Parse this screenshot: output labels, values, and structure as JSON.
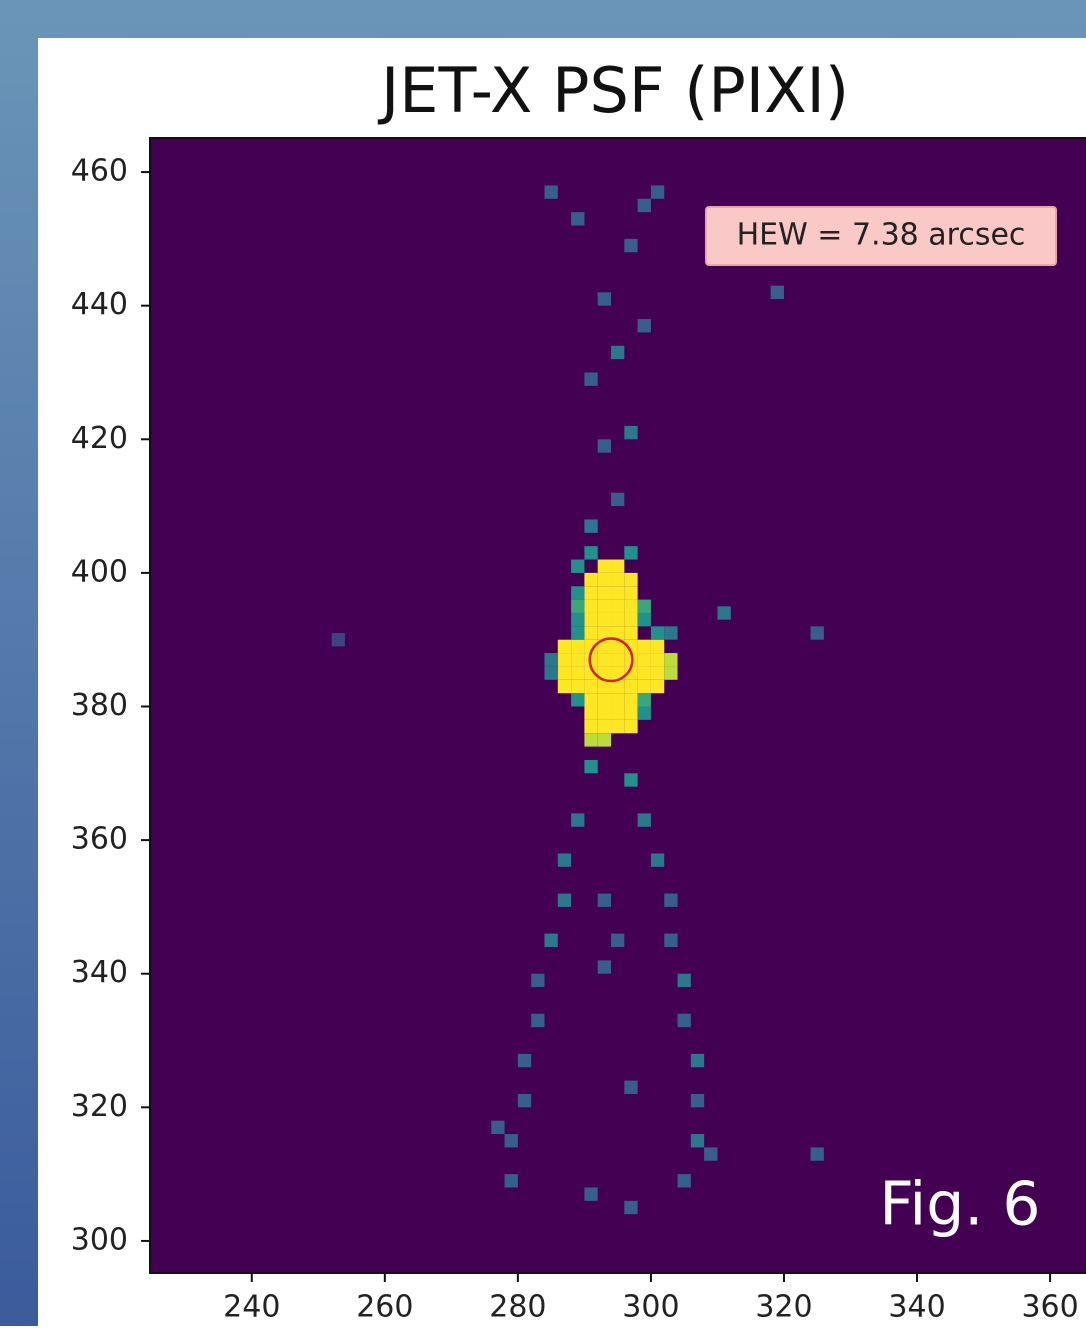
{
  "chart_data": {
    "type": "image",
    "title": "JET-X PSF (PIXI)",
    "annotation": "HEW = 7.38 arcsec",
    "figure_label": "Fig. 6",
    "xlim": [
      224.7,
      365.4
    ],
    "ylim": [
      295.2,
      465.1
    ],
    "xticks": [
      240,
      260,
      280,
      300,
      320,
      340,
      360
    ],
    "yticks": [
      300,
      320,
      340,
      360,
      380,
      400,
      420,
      440,
      460
    ],
    "colormap": "viridis",
    "clim": [
      0,
      10
    ],
    "pixel_size": 2,
    "pixels": {
      "x": [
        290,
        292,
        294,
        296,
        290,
        292,
        294,
        296,
        290,
        292,
        294,
        296,
        290,
        292,
        294,
        296,
        290,
        292,
        294,
        296,
        290,
        292,
        294,
        296,
        290,
        292,
        294,
        296,
        290,
        292,
        294,
        296,
        290,
        292,
        294,
        296,
        290,
        292,
        294,
        296,
        290,
        292,
        294,
        296,
        290,
        292,
        294,
        296,
        292,
        294,
        290,
        292,
        286,
        288,
        298,
        300,
        286,
        288,
        298,
        300,
        286,
        288,
        298,
        300,
        286,
        288,
        298,
        300,
        302,
        302,
        288,
        288,
        288,
        288,
        298,
        298,
        296,
        290,
        284,
        284,
        288,
        298,
        298,
        300,
        302,
        288,
        290,
        294,
        292,
        296,
        290,
        294,
        298,
        292,
        296,
        284,
        288,
        298,
        300,
        290,
        296,
        288,
        298,
        286,
        300,
        286,
        302,
        284,
        302,
        282,
        304,
        282,
        304,
        280,
        306,
        280,
        306,
        278,
        306,
        278,
        304,
        292,
        294,
        292,
        296,
        290,
        296,
        276,
        308,
        310,
        324,
        318,
        252,
        324
      ],
      "y": [
        376,
        376,
        376,
        376,
        378,
        378,
        378,
        378,
        380,
        380,
        380,
        380,
        382,
        382,
        382,
        382,
        384,
        384,
        384,
        384,
        386,
        386,
        386,
        386,
        388,
        388,
        388,
        388,
        390,
        390,
        390,
        390,
        392,
        392,
        392,
        392,
        394,
        394,
        394,
        394,
        396,
        396,
        396,
        396,
        398,
        398,
        398,
        398,
        400,
        400,
        374,
        374,
        382,
        382,
        382,
        382,
        384,
        384,
        384,
        384,
        386,
        386,
        386,
        386,
        388,
        388,
        388,
        388,
        384,
        386,
        390,
        392,
        394,
        396,
        392,
        394,
        402,
        402,
        386,
        384,
        380,
        378,
        380,
        390,
        390,
        400,
        406,
        410,
        418,
        420,
        428,
        432,
        436,
        440,
        448,
        456,
        452,
        454,
        456,
        370,
        368,
        362,
        362,
        356,
        356,
        350,
        350,
        344,
        344,
        338,
        338,
        332,
        332,
        326,
        326,
        320,
        320,
        314,
        314,
        308,
        308,
        350,
        344,
        340,
        322,
        306,
        304,
        316,
        312,
        393,
        312,
        441,
        389,
        390
      ],
      "values": [
        10,
        10,
        10,
        10,
        10,
        10,
        10,
        10,
        10,
        10,
        10,
        10,
        10,
        10,
        10,
        10,
        10,
        10,
        10,
        10,
        10,
        10,
        10,
        10,
        10,
        10,
        10,
        10,
        10,
        10,
        10,
        10,
        10,
        10,
        10,
        10,
        10,
        10,
        10,
        10,
        10,
        10,
        10,
        10,
        10,
        10,
        10,
        10,
        10,
        10,
        9,
        9,
        10,
        10,
        10,
        10,
        10,
        10,
        10,
        10,
        10,
        10,
        10,
        10,
        10,
        10,
        10,
        10,
        9,
        9,
        5,
        5,
        6,
        5,
        5,
        6,
        5,
        5,
        4,
        4,
        5,
        5,
        6,
        5,
        4,
        5,
        4,
        3,
        3,
        4,
        3,
        4,
        3,
        3,
        3,
        3,
        3,
        3,
        3,
        5,
        5,
        4,
        4,
        4,
        4,
        4,
        3,
        4,
        3,
        3,
        4,
        3,
        3,
        3,
        4,
        3,
        3,
        3,
        4,
        3,
        3,
        3,
        3,
        3,
        3,
        3,
        3,
        3,
        3,
        4,
        3,
        3,
        2,
        3
      ]
    },
    "circle": {
      "x": 294,
      "y": 387,
      "r": 3.2,
      "color": "#d62020"
    },
    "background": "#440154"
  }
}
